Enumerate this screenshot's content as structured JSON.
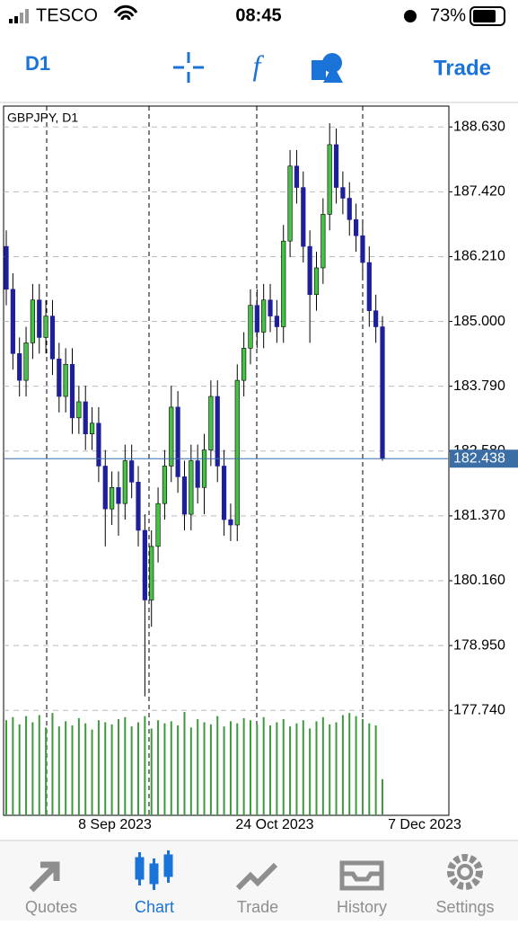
{
  "status_bar": {
    "carrier": "TESCO",
    "time": "08:45",
    "battery": "73%"
  },
  "toolbar": {
    "timeframe": "D1",
    "trade": "Trade"
  },
  "chart_data": {
    "type": "candlestick",
    "title": "GBPJPY, D1",
    "ylim": [
      175.78,
      189.02
    ],
    "yticks": [
      {
        "value": 188.63,
        "label": "188.630"
      },
      {
        "value": 187.42,
        "label": "187.420"
      },
      {
        "value": 186.21,
        "label": "186.210"
      },
      {
        "value": 185,
        "label": "185.000"
      },
      {
        "value": 183.79,
        "label": "183.790"
      },
      {
        "value": 182.58,
        "label": "182.580"
      },
      {
        "value": 181.37,
        "label": "181.370"
      },
      {
        "value": 180.16,
        "label": "180.160"
      },
      {
        "value": 178.95,
        "label": "178.950"
      },
      {
        "value": 177.74,
        "label": "177.740"
      }
    ],
    "grid": true,
    "colors": {
      "up": "#45c145",
      "down": "#1f1f9a"
    },
    "current_price": 182.438,
    "x_labels": [
      "8 Sep 2023",
      "24 Oct 2023",
      "7 Dec 2023"
    ],
    "candles": [
      [
        186.4,
        186.7,
        185.3,
        185.6
      ],
      [
        185.6,
        185.9,
        184.1,
        184.4
      ],
      [
        184.4,
        184.7,
        183.6,
        183.9
      ],
      [
        183.9,
        184.9,
        183.6,
        184.6
      ],
      [
        184.6,
        185.7,
        184.3,
        185.4
      ],
      [
        185.4,
        185.7,
        184.4,
        184.7
      ],
      [
        184.7,
        185.4,
        184.4,
        185.1
      ],
      [
        185.1,
        185.4,
        184.0,
        184.3
      ],
      [
        184.3,
        184.6,
        183.3,
        183.6
      ],
      [
        183.6,
        184.5,
        183.3,
        184.2
      ],
      [
        184.2,
        184.5,
        182.9,
        183.2
      ],
      [
        183.2,
        183.8,
        182.9,
        183.5
      ],
      [
        183.5,
        183.8,
        182.6,
        182.9
      ],
      [
        182.9,
        183.4,
        182.6,
        183.1
      ],
      [
        183.1,
        183.4,
        182.0,
        182.3
      ],
      [
        182.3,
        182.6,
        180.8,
        181.5
      ],
      [
        181.5,
        182.2,
        181.2,
        181.9
      ],
      [
        181.9,
        182.2,
        181.0,
        181.6
      ],
      [
        181.6,
        182.7,
        181.3,
        182.4
      ],
      [
        182.4,
        182.7,
        181.7,
        182.0
      ],
      [
        182.0,
        182.3,
        180.8,
        181.1
      ],
      [
        181.1,
        181.4,
        178.0,
        179.8
      ],
      [
        179.8,
        181.1,
        179.3,
        180.8
      ],
      [
        180.8,
        181.9,
        180.5,
        181.6
      ],
      [
        181.6,
        182.6,
        181.3,
        182.3
      ],
      [
        182.3,
        183.8,
        182.0,
        183.4
      ],
      [
        183.4,
        183.7,
        181.8,
        182.1
      ],
      [
        182.1,
        182.4,
        181.1,
        181.4
      ],
      [
        181.4,
        182.7,
        181.1,
        182.4
      ],
      [
        182.4,
        182.7,
        181.6,
        181.9
      ],
      [
        181.9,
        182.9,
        181.4,
        182.6
      ],
      [
        182.6,
        183.9,
        182.3,
        183.6
      ],
      [
        183.6,
        183.9,
        182.0,
        182.3
      ],
      [
        182.3,
        182.6,
        181.0,
        181.3
      ],
      [
        181.3,
        181.6,
        180.9,
        181.2
      ],
      [
        181.2,
        184.2,
        180.9,
        183.9
      ],
      [
        183.9,
        184.8,
        183.6,
        184.5
      ],
      [
        184.5,
        185.6,
        184.2,
        185.3
      ],
      [
        185.3,
        185.6,
        184.5,
        184.8
      ],
      [
        184.8,
        185.7,
        184.5,
        185.4
      ],
      [
        185.4,
        185.7,
        184.8,
        185.1
      ],
      [
        185.1,
        185.4,
        184.6,
        184.9
      ],
      [
        184.9,
        186.8,
        184.6,
        186.5
      ],
      [
        186.5,
        188.2,
        186.2,
        187.9
      ],
      [
        187.9,
        188.2,
        187.2,
        187.5
      ],
      [
        187.5,
        187.8,
        186.1,
        186.4
      ],
      [
        186.4,
        186.7,
        184.6,
        185.5
      ],
      [
        185.5,
        186.3,
        185.2,
        186.0
      ],
      [
        186.0,
        187.3,
        185.7,
        187.0
      ],
      [
        187.0,
        188.7,
        186.7,
        188.3
      ],
      [
        188.3,
        188.6,
        187.2,
        187.5
      ],
      [
        187.5,
        187.8,
        187.0,
        187.3
      ],
      [
        187.3,
        187.6,
        186.6,
        186.9
      ],
      [
        186.9,
        187.2,
        186.3,
        186.6
      ],
      [
        186.6,
        186.9,
        185.8,
        186.1
      ],
      [
        186.1,
        186.4,
        184.9,
        185.2
      ],
      [
        185.2,
        185.5,
        184.6,
        184.9
      ],
      [
        184.9,
        185.1,
        182.4,
        182.44
      ]
    ],
    "volumes": [
      92,
      95,
      88,
      96,
      90,
      97,
      85,
      99,
      86,
      91,
      87,
      94,
      89,
      83,
      92,
      90,
      88,
      93,
      95,
      86,
      90,
      96,
      84,
      92,
      89,
      91,
      87,
      100,
      85,
      93,
      90,
      88,
      96,
      86,
      91,
      89,
      94,
      92,
      88,
      95,
      87,
      90,
      93,
      86,
      89,
      92,
      84,
      91,
      95,
      88,
      90,
      97,
      99,
      96,
      93,
      89,
      87,
      35
    ]
  },
  "tabs": [
    "Quotes",
    "Chart",
    "Trade",
    "History",
    "Settings"
  ],
  "active_tab": 1
}
